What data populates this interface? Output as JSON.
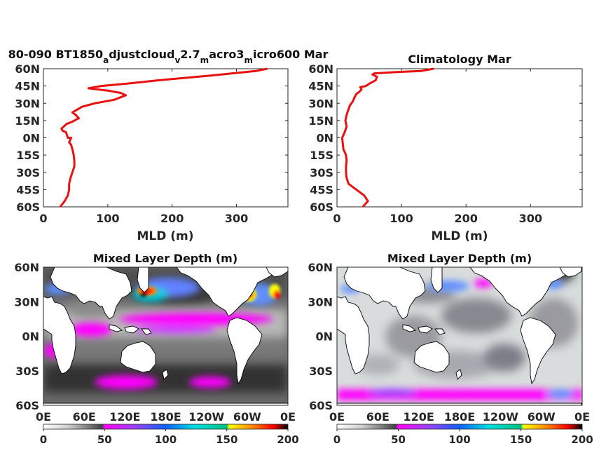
{
  "chart_data": [
    {
      "type": "line",
      "title_parts": [
        {
          "text": "80-090 BT1850",
          "sub": false
        },
        {
          "text": "a",
          "sub": true
        },
        {
          "text": "djustcloud",
          "sub": false
        },
        {
          "text": "v",
          "sub": true
        },
        {
          "text": "2.7",
          "sub": false
        },
        {
          "text": "m",
          "sub": true
        },
        {
          "text": "acro3",
          "sub": false
        },
        {
          "text": "m",
          "sub": true
        },
        {
          "text": "icro600 Mar",
          "sub": false
        }
      ],
      "xlabel": "MLD (m)",
      "xlim": [
        0,
        380
      ],
      "ylim": [
        -60,
        60
      ],
      "xticks": [
        0,
        100,
        200,
        300
      ],
      "yticks": [
        "60N",
        "45N",
        "30N",
        "15N",
        "0N",
        "15S",
        "30S",
        "45S",
        "60S"
      ],
      "color": "#e8110f",
      "x": [
        26,
        33,
        38,
        40,
        40,
        42,
        45,
        48,
        48,
        47,
        45,
        43,
        40,
        43,
        38,
        35,
        30,
        28,
        32,
        36,
        45,
        55,
        50,
        45,
        60,
        80,
        110,
        128,
        120,
        100,
        70,
        90,
        130,
        180,
        260,
        330,
        348
      ],
      "y": [
        -60,
        -55,
        -50,
        -45,
        -40,
        -35,
        -30,
        -25,
        -20,
        -15,
        -10,
        -6,
        -4,
        0,
        0,
        5,
        6,
        8,
        10,
        12,
        14,
        17,
        20,
        22,
        27,
        30,
        33,
        37,
        39,
        41,
        43,
        45,
        47,
        50,
        54,
        58,
        60
      ]
    },
    {
      "type": "line",
      "title": "Climatology Mar",
      "xlabel": "MLD (m)",
      "xlim": [
        0,
        380
      ],
      "ylim": [
        -60,
        60
      ],
      "xticks": [
        0,
        100,
        200,
        300
      ],
      "yticks": [
        "60N",
        "45N",
        "30N",
        "15N",
        "0N",
        "15S",
        "30S",
        "45S",
        "60S"
      ],
      "color": "#e8110f",
      "x": [
        40,
        48,
        42,
        30,
        18,
        15,
        14,
        14,
        15,
        14,
        10,
        9,
        8,
        12,
        15,
        13,
        15,
        18,
        20,
        25,
        27,
        30,
        35,
        38,
        36,
        45,
        50,
        60,
        62,
        55,
        58,
        90,
        130,
        150
      ],
      "y": [
        -60,
        -55,
        -50,
        -45,
        -40,
        -35,
        -30,
        -25,
        -20,
        -15,
        -10,
        -5,
        0,
        5,
        10,
        15,
        20,
        25,
        28,
        32,
        35,
        38,
        40,
        42,
        44,
        45,
        47,
        50,
        53,
        55,
        56,
        57,
        58,
        60
      ]
    },
    {
      "type": "heatmap",
      "title": "Mixed Layer Depth (m)",
      "xticks": [
        "0E",
        "60E",
        "120E",
        "180E",
        "120W",
        "60W",
        "0E"
      ],
      "yticks": [
        "60N",
        "30N",
        "0N",
        "30S",
        "60S"
      ],
      "colorbar_ticks": [
        "0",
        "50",
        "100",
        "150",
        "200"
      ],
      "colorbar_range": [
        0,
        200
      ],
      "colormap": [
        "#ffffff",
        "#d0d0d0",
        "#808080",
        "#404040",
        "#1a1a1a",
        "#ff00ff",
        "#a040ff",
        "#6090ff",
        "#1060ff",
        "#00e0e0",
        "#00c080",
        "#ffff00",
        "#ff8000",
        "#ff0000",
        "#000000"
      ]
    },
    {
      "type": "heatmap",
      "title": "Mixed Layer Depth (m)",
      "xticks": [
        "0E",
        "60E",
        "120E",
        "180E",
        "120W",
        "60W",
        "0E"
      ],
      "yticks": [
        "60N",
        "30N",
        "0N",
        "30S",
        "60S"
      ],
      "colorbar_ticks": [
        "0",
        "50",
        "100",
        "150",
        "200"
      ],
      "colorbar_range": [
        0,
        200
      ],
      "colormap": [
        "#ffffff",
        "#d0d0d0",
        "#808080",
        "#404040",
        "#1a1a1a",
        "#ff00ff",
        "#a040ff",
        "#6090ff",
        "#1060ff",
        "#00e0e0",
        "#00c080",
        "#ffff00",
        "#ff8000",
        "#ff0000",
        "#000000"
      ]
    }
  ]
}
